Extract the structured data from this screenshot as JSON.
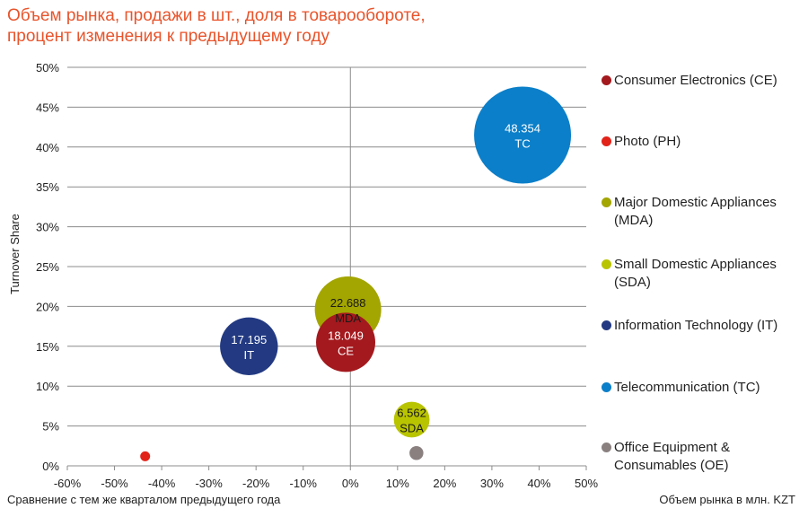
{
  "title": {
    "line1": "Объем рынка, продажи в шт., доля в товарообороте,",
    "line2": "процент изменения к предыдущему году"
  },
  "footnotes": {
    "left": "Сравнение с тем же кварталом предыдущего года",
    "right": "Объем рынка в млн. KZT"
  },
  "chart_data": {
    "type": "bubble",
    "title": "Объем рынка, продажи в шт., доля в товарообороте, процент изменения к предыдущему году",
    "xlabel": "Сравнение с тем же кварталом предыдущего года",
    "ylabel": "Turnover Share",
    "xlim": [
      -60,
      50
    ],
    "ylim": [
      0,
      50
    ],
    "x_ticks": [
      -60,
      -50,
      -40,
      -30,
      -20,
      -10,
      0,
      10,
      20,
      30,
      40,
      50
    ],
    "y_ticks": [
      0,
      5,
      10,
      15,
      20,
      25,
      30,
      35,
      40,
      45,
      50
    ],
    "x_tick_labels": [
      "-60%",
      "-50%",
      "-40%",
      "-30%",
      "-20%",
      "-10%",
      "0%",
      "10%",
      "20%",
      "30%",
      "40%",
      "50%"
    ],
    "y_tick_labels": [
      "0%",
      "5%",
      "10%",
      "15%",
      "20%",
      "25%",
      "30%",
      "35%",
      "40%",
      "45%",
      "50%"
    ],
    "grid": "horizontal",
    "legend_position": "right",
    "size_label": "Объем рынка в млн. KZT",
    "series": [
      {
        "name": "Consumer Electronics (CE)",
        "abbr": "CE",
        "x": -1,
        "y": 15.5,
        "size": 18.049,
        "size_label": "18.049",
        "color": "#a3191e"
      },
      {
        "name": "Photo (PH)",
        "abbr": "PH",
        "x": -43.5,
        "y": 1.2,
        "size": 0.5,
        "size_label": "",
        "color": "#e2231a"
      },
      {
        "name": "Major Domestic Appliances (MDA)",
        "abbr": "MDA",
        "x": -0.5,
        "y": 19.6,
        "size": 22.688,
        "size_label": "22.688",
        "color": "#a3a500"
      },
      {
        "name": "Small Domestic Appliances (SDA)",
        "abbr": "SDA",
        "x": 13,
        "y": 5.8,
        "size": 6.562,
        "size_label": "6.562",
        "color": "#b9c400"
      },
      {
        "name": "Information Technology (IT)",
        "abbr": "IT",
        "x": -21.5,
        "y": 15,
        "size": 17.195,
        "size_label": "17.195",
        "color": "#233a82"
      },
      {
        "name": "Telecommunication (TC)",
        "abbr": "TC",
        "x": 36.5,
        "y": 41.5,
        "size": 48.354,
        "size_label": "48.354",
        "color": "#0b7fc9"
      },
      {
        "name": "Office Equipment & Consumables (OE)",
        "abbr": "OE",
        "x": 14,
        "y": 1.6,
        "size": 1.0,
        "size_label": "",
        "color": "#8a8080"
      }
    ]
  },
  "legend": [
    {
      "line1": "Consumer Electronics (CE)",
      "line2": "",
      "color": "#a3191e"
    },
    {
      "line1": "Photo (PH)",
      "line2": "",
      "color": "#e2231a"
    },
    {
      "line1": "Major Domestic Appliances",
      "line2": "(MDA)",
      "color": "#a3a500"
    },
    {
      "line1": "Small Domestic Appliances",
      "line2": "(SDA)",
      "color": "#b9c400"
    },
    {
      "line1": "Information Technology (IT)",
      "line2": "",
      "color": "#233a82"
    },
    {
      "line1": "Telecommunication (TC)",
      "line2": "",
      "color": "#0b7fc9"
    },
    {
      "line1": "Office Equipment &",
      "line2": "Consumables (OE)",
      "color": "#8a8080"
    }
  ]
}
